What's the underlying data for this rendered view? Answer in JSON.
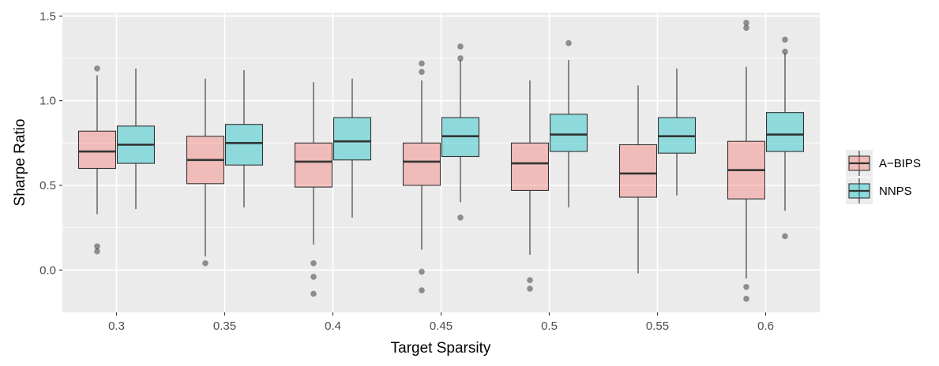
{
  "chart_data": {
    "type": "boxplot",
    "title": "",
    "xlabel": "Target Sparsity",
    "ylabel": "Sharpe Ratio",
    "categories": [
      "0.3",
      "0.35",
      "0.4",
      "0.45",
      "0.5",
      "0.55",
      "0.6"
    ],
    "ylim": [
      -0.25,
      1.52
    ],
    "yticks": [
      0.0,
      0.5,
      1.0,
      1.5
    ],
    "ytick_labels": [
      "0.0",
      "0.5",
      "1.0",
      "1.5"
    ],
    "grid": true,
    "legend_position": "right",
    "series": [
      {
        "name": "A−BIPS",
        "color": "#F8766D",
        "boxes": [
          {
            "lower_whisker": 0.33,
            "q1": 0.6,
            "median": 0.7,
            "q3": 0.82,
            "upper_whisker": 1.15,
            "outliers": [
              1.19,
              0.14,
              0.11
            ]
          },
          {
            "lower_whisker": 0.08,
            "q1": 0.51,
            "median": 0.65,
            "q3": 0.79,
            "upper_whisker": 1.13,
            "outliers": [
              0.04
            ]
          },
          {
            "lower_whisker": 0.15,
            "q1": 0.49,
            "median": 0.64,
            "q3": 0.75,
            "upper_whisker": 1.11,
            "outliers": [
              0.04,
              -0.04,
              -0.14
            ]
          },
          {
            "lower_whisker": 0.12,
            "q1": 0.5,
            "median": 0.64,
            "q3": 0.75,
            "upper_whisker": 1.12,
            "outliers": [
              1.22,
              1.17,
              -0.01,
              -0.12
            ]
          },
          {
            "lower_whisker": 0.09,
            "q1": 0.47,
            "median": 0.63,
            "q3": 0.75,
            "upper_whisker": 1.12,
            "outliers": [
              -0.06,
              -0.11
            ]
          },
          {
            "lower_whisker": -0.02,
            "q1": 0.43,
            "median": 0.57,
            "q3": 0.74,
            "upper_whisker": 1.09,
            "outliers": []
          },
          {
            "lower_whisker": -0.05,
            "q1": 0.42,
            "median": 0.59,
            "q3": 0.76,
            "upper_whisker": 1.2,
            "outliers": [
              1.46,
              1.43,
              -0.1,
              -0.17
            ]
          }
        ]
      },
      {
        "name": "NNPS",
        "color": "#00BFC4",
        "boxes": [
          {
            "lower_whisker": 0.36,
            "q1": 0.63,
            "median": 0.74,
            "q3": 0.85,
            "upper_whisker": 1.19,
            "outliers": []
          },
          {
            "lower_whisker": 0.37,
            "q1": 0.62,
            "median": 0.75,
            "q3": 0.86,
            "upper_whisker": 1.18,
            "outliers": []
          },
          {
            "lower_whisker": 0.31,
            "q1": 0.65,
            "median": 0.76,
            "q3": 0.9,
            "upper_whisker": 1.13,
            "outliers": []
          },
          {
            "lower_whisker": 0.4,
            "q1": 0.67,
            "median": 0.79,
            "q3": 0.9,
            "upper_whisker": 1.24,
            "outliers": [
              1.32,
              1.25,
              0.31
            ]
          },
          {
            "lower_whisker": 0.37,
            "q1": 0.7,
            "median": 0.8,
            "q3": 0.92,
            "upper_whisker": 1.24,
            "outliers": [
              1.34
            ]
          },
          {
            "lower_whisker": 0.44,
            "q1": 0.69,
            "median": 0.79,
            "q3": 0.9,
            "upper_whisker": 1.19,
            "outliers": []
          },
          {
            "lower_whisker": 0.35,
            "q1": 0.7,
            "median": 0.8,
            "q3": 0.93,
            "upper_whisker": 1.28,
            "outliers": [
              1.36,
              1.29,
              0.2
            ]
          }
        ]
      }
    ]
  }
}
